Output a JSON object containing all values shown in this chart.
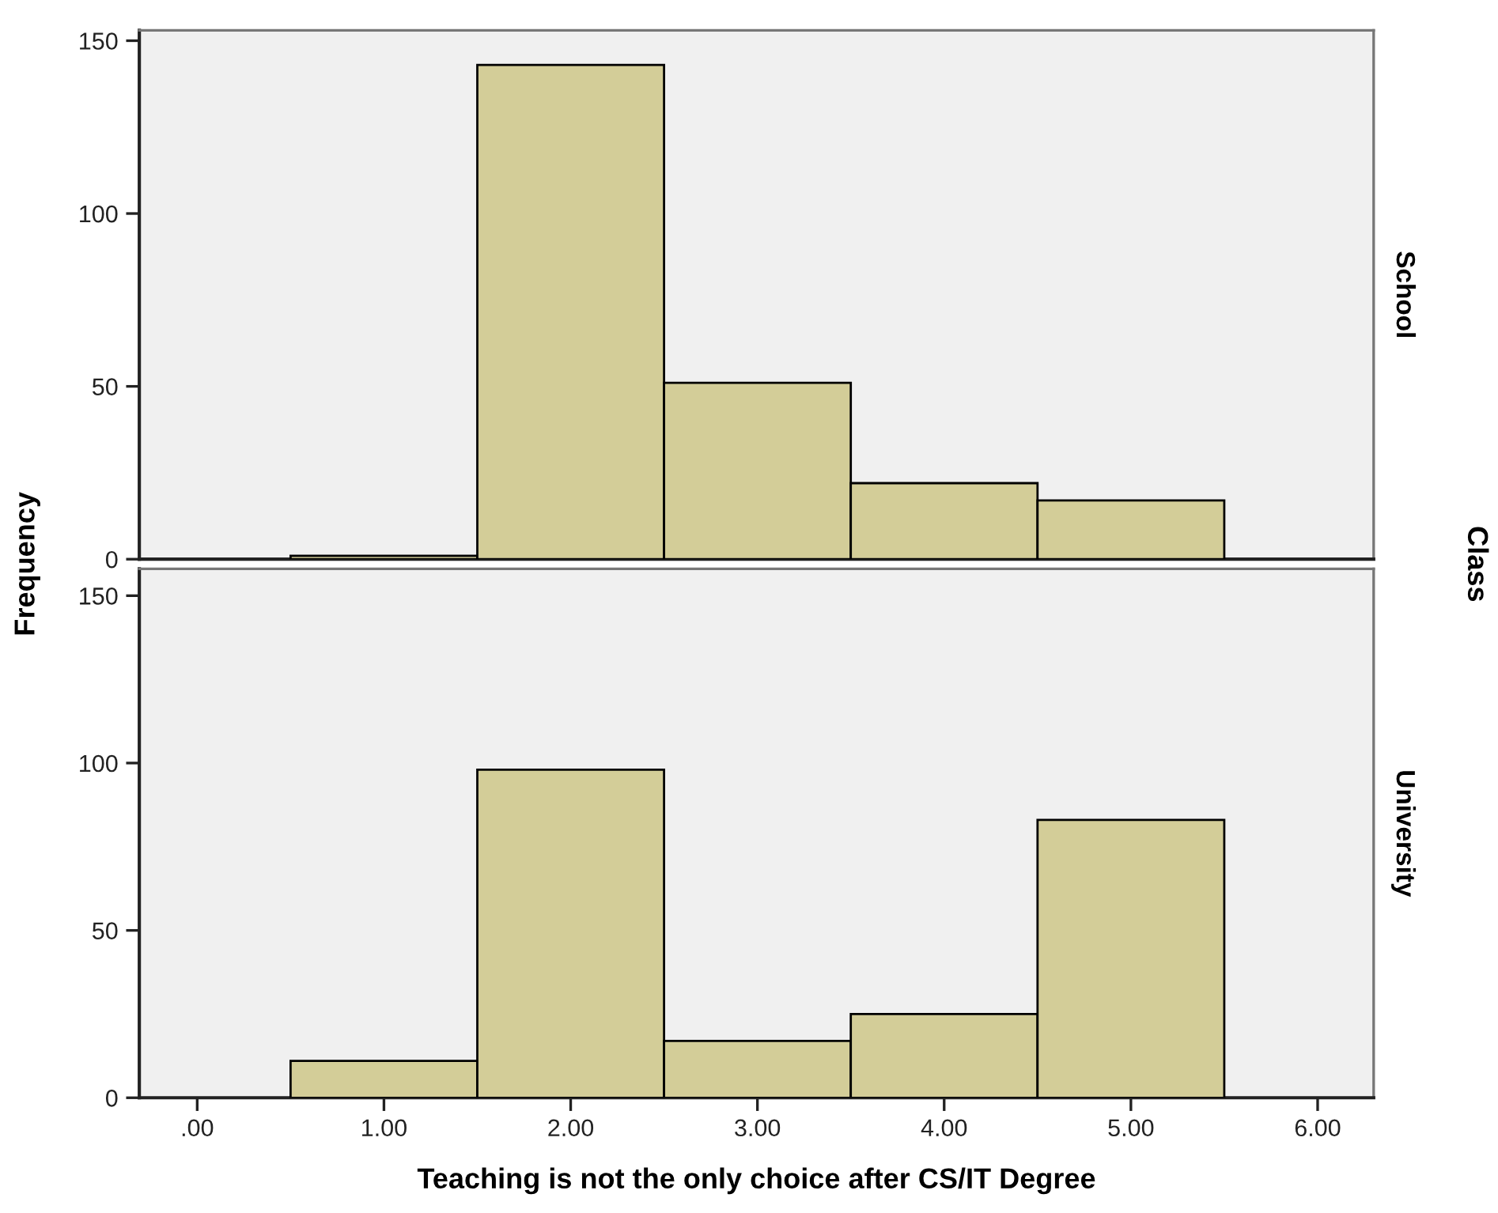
{
  "chart_data": [
    {
      "type": "histogram",
      "y2label": "School",
      "ylabel": "Frequency",
      "bins": [
        0.5,
        1.5,
        2.5,
        3.5,
        4.5,
        5.5
      ],
      "values": [
        1,
        143,
        51,
        22,
        17
      ],
      "color": "#d3cd98",
      "xlim": [
        -0.31,
        6.3
      ],
      "ylim": [
        0,
        153
      ],
      "yticks": [
        0,
        50,
        100,
        150
      ],
      "tick_labels": "y",
      "grid": false,
      "legend": false
    },
    {
      "type": "histogram",
      "y2label": "University",
      "xlabel": "Teaching is not the only choice after CS/IT Degree",
      "annotations": [
        "Class"
      ],
      "bins": [
        0.5,
        1.5,
        2.5,
        3.5,
        4.5,
        5.5
      ],
      "values": [
        11,
        98,
        17,
        25,
        83
      ],
      "color": "#d3cd98",
      "xlim": [
        -0.31,
        6.3
      ],
      "ylim": [
        0,
        158
      ],
      "xticks": [
        {
          "value": 0,
          "label": ".00"
        },
        {
          "value": 1,
          "label": "1.00"
        },
        {
          "value": 2,
          "label": "2.00"
        },
        {
          "value": 3,
          "label": "3.00"
        },
        {
          "value": 4,
          "label": "4.00"
        },
        {
          "value": 5,
          "label": "5.00"
        },
        {
          "value": 6,
          "label": "6.00"
        }
      ],
      "yticks": [
        0,
        50,
        100,
        150
      ],
      "grid": false,
      "legend": false
    }
  ]
}
